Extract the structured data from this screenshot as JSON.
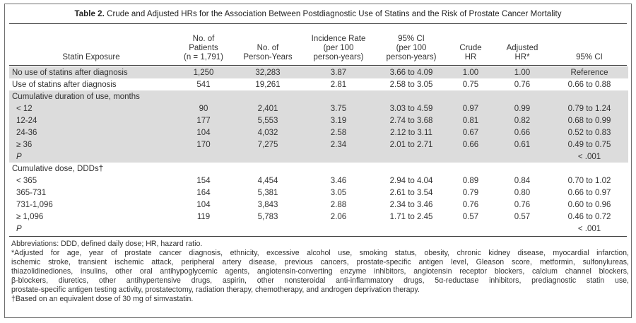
{
  "table": {
    "title_label": "Table 2.",
    "title_text": "Crude and Adjusted HRs for the Association Between Postdiagnostic Use of Statins and the Risk of Prostate Cancer Mortality",
    "columns": [
      "Statin Exposure",
      "No. of\nPatients\n(n = 1,791)",
      "No. of\nPerson-Years",
      "Incidence Rate\n(per 100\nperson-years)",
      "95% CI\n(per 100\nperson-years)",
      "Crude\nHR",
      "Adjusted\nHR*",
      "95% CI"
    ],
    "rows": [
      {
        "cells": [
          "No use of statins after diagnosis",
          "1,250",
          "32,283",
          "3.87",
          "3.66 to 4.09",
          "1.00",
          "1.00",
          "Reference"
        ]
      },
      {
        "cells": [
          "Use of statins after diagnosis",
          "541",
          "19,261",
          "2.81",
          "2.58 to 3.05",
          "0.75",
          "0.76",
          "0.66 to 0.88"
        ]
      },
      {
        "cells": [
          "Cumulative duration of use, months",
          "",
          "",
          "",
          "",
          "",
          "",
          ""
        ]
      },
      {
        "cells": [
          "< 12",
          "90",
          "2,401",
          "3.75",
          "3.03 to 4.59",
          "0.97",
          "0.99",
          "0.79 to 1.24"
        ]
      },
      {
        "cells": [
          "12-24",
          "177",
          "5,553",
          "3.19",
          "2.74 to 3.68",
          "0.81",
          "0.82",
          "0.68 to 0.99"
        ]
      },
      {
        "cells": [
          "24-36",
          "104",
          "4,032",
          "2.58",
          "2.12 to 3.11",
          "0.67",
          "0.66",
          "0.52 to 0.83"
        ]
      },
      {
        "cells": [
          "≥ 36",
          "170",
          "7,275",
          "2.34",
          "2.01 to 2.71",
          "0.66",
          "0.61",
          "0.49 to 0.75"
        ]
      },
      {
        "cells": [
          "P",
          "",
          "",
          "",
          "",
          "",
          "",
          "< .001"
        ]
      },
      {
        "cells": [
          "Cumulative dose, DDDs†",
          "",
          "",
          "",
          "",
          "",
          "",
          ""
        ]
      },
      {
        "cells": [
          "< 365",
          "154",
          "4,454",
          "3.46",
          "2.94 to 4.04",
          "0.89",
          "0.84",
          "0.70 to 1.02"
        ]
      },
      {
        "cells": [
          "365-731",
          "164",
          "5,381",
          "3.05",
          "2.61 to 3.54",
          "0.79",
          "0.80",
          "0.66 to 0.97"
        ]
      },
      {
        "cells": [
          "731-1,096",
          "104",
          "3,843",
          "2.88",
          "2.34 to 3.46",
          "0.76",
          "0.76",
          "0.60 to 0.96"
        ]
      },
      {
        "cells": [
          "≥ 1,096",
          "119",
          "5,783",
          "2.06",
          "1.71 to 2.45",
          "0.57",
          "0.57",
          "0.46 to 0.72"
        ]
      },
      {
        "cells": [
          "P",
          "",
          "",
          "",
          "",
          "",
          "",
          "< .001"
        ]
      }
    ]
  },
  "notes": {
    "abbreviations": "Abbreviations: DDD, defined daily dose; HR, hazard ratio.",
    "adjusted_line1": "*Adjusted for age, year of prostate cancer diagnosis, ethnicity, excessive alcohol use, smoking status, obesity, chronic kidney disease, myocardial infarction,",
    "adjusted_line2": "ischemic stroke, transient ischemic attack, peripheral artery disease, previous cancers, prostate-specific antigen level, Gleason score, metformin, sulfonylureas,",
    "adjusted_line3": "thiazolidinediones, insulins, other oral antihypoglycemic agents, angiotensin-converting enzyme inhibitors, angiotensin receptor blockers, calcium channel blockers,",
    "adjusted_line4": "β-blockers, diuretics, other antihypertensive drugs, aspirin, other nonsteroidal anti-inflammatory drugs, 5α-reductase inhibitors, prediagnostic statin use,",
    "adjusted_line5": "prostate-specific antigen testing activity, prostatectomy, radiation therapy, chemotherapy, and androgen deprivation therapy.",
    "dose_note": "†Based on an equivalent dose of 30 mg of simvastatin."
  }
}
